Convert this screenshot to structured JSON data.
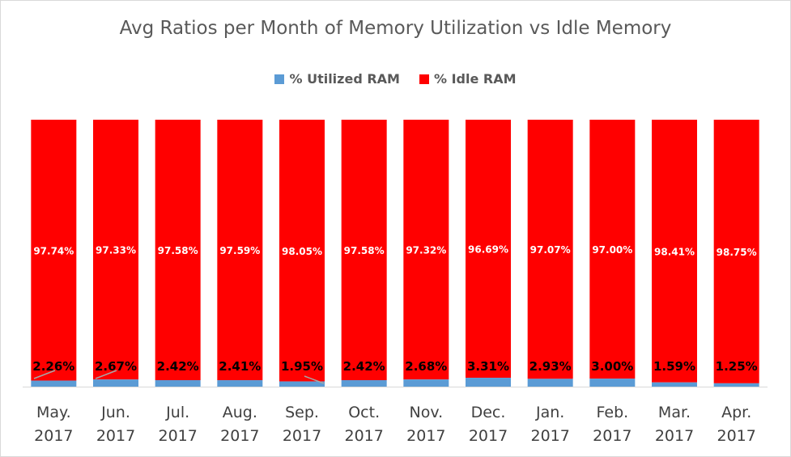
{
  "chart_data": {
    "type": "bar",
    "stacked": true,
    "percent_stacked": true,
    "title": "Avg Ratios per Month of Memory Utilization vs Idle Memory",
    "xlabel": "",
    "ylabel": "",
    "ylim": [
      0,
      100
    ],
    "grid": false,
    "legend_position": "top",
    "categories": [
      [
        "May.",
        "2017"
      ],
      [
        "Jun.",
        "2017"
      ],
      [
        "Jul.",
        "2017"
      ],
      [
        "Aug.",
        "2017"
      ],
      [
        "Sep.",
        "2017"
      ],
      [
        "Oct.",
        "2017"
      ],
      [
        "Nov.",
        "2017"
      ],
      [
        "Dec.",
        "2017"
      ],
      [
        "Jan.",
        "2017"
      ],
      [
        "Feb.",
        "2017"
      ],
      [
        "Mar.",
        "2017"
      ],
      [
        "Apr.",
        "2017"
      ]
    ],
    "series": [
      {
        "name": "% Utilized RAM",
        "color": "#5b9bd5",
        "values": [
          2.26,
          2.67,
          2.42,
          2.41,
          1.95,
          2.42,
          2.68,
          3.31,
          2.93,
          3.0,
          1.59,
          1.25
        ],
        "labels": [
          "2.26%",
          "2.67%",
          "2.42%",
          "2.41%",
          "1.95%",
          "2.42%",
          "2.68%",
          "3.31%",
          "2.93%",
          "3.00%",
          "1.59%",
          "1.25%"
        ]
      },
      {
        "name": "% Idle RAM",
        "color": "#ff0000",
        "values": [
          97.74,
          97.33,
          97.58,
          97.59,
          98.05,
          97.58,
          97.32,
          96.69,
          97.07,
          97.0,
          98.41,
          98.75
        ],
        "labels": [
          "97.74%",
          "97.33%",
          "97.58%",
          "97.59%",
          "98.05%",
          "97.58%",
          "97.32%",
          "96.69%",
          "97.07%",
          "97.00%",
          "98.41%",
          "98.75%"
        ]
      }
    ]
  }
}
